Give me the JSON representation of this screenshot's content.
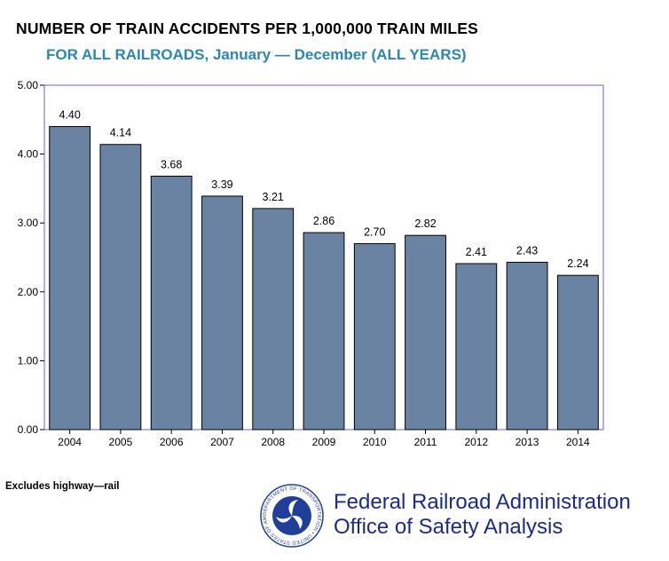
{
  "header": {
    "title": "NUMBER OF TRAIN ACCIDENTS PER 1,000,000 TRAIN MILES",
    "subtitle": "FOR ALL RAILROADS, January — December (ALL YEARS)"
  },
  "footnote": "Excludes highway—rail",
  "agency": {
    "line1": "Federal Railroad Administration",
    "line2": "Office of Safety Analysis",
    "seal_text": "DEPARTMENT OF TRANSPORTATION • UNITED STATES OF AMERICA"
  },
  "colors": {
    "bar": "#6a83a2",
    "bar_stroke": "#000000",
    "frame": "#6060ff",
    "title": "#000000",
    "subtitle": "#2b86b3",
    "agency_text": "#1c2a8a",
    "seal": "#1f3f99"
  },
  "chart_data": {
    "type": "bar",
    "title": "NUMBER OF TRAIN ACCIDENTS PER 1,000,000 TRAIN MILES",
    "subtitle": "FOR ALL RAILROADS, January — December (ALL YEARS)",
    "xlabel": "",
    "ylabel": "",
    "categories": [
      "2004",
      "2005",
      "2006",
      "2007",
      "2008",
      "2009",
      "2010",
      "2011",
      "2012",
      "2013",
      "2014"
    ],
    "values": [
      4.4,
      4.14,
      3.68,
      3.39,
      3.21,
      2.86,
      2.7,
      2.82,
      2.41,
      2.43,
      2.24
    ],
    "value_labels": [
      "4.40",
      "4.14",
      "3.68",
      "3.39",
      "3.21",
      "2.86",
      "2.70",
      "2.82",
      "2.41",
      "2.43",
      "2.24"
    ],
    "ylim": [
      0,
      5
    ],
    "yticks": [
      0,
      1,
      2,
      3,
      4,
      5
    ],
    "ytick_labels": [
      "0.00",
      "1.00",
      "2.00",
      "3.00",
      "4.00",
      "5.00"
    ],
    "grid": false,
    "legend": "none"
  }
}
